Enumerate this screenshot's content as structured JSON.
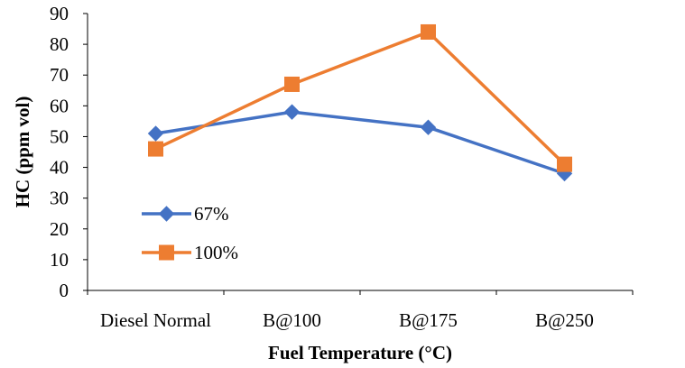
{
  "chart_data": {
    "type": "line",
    "categories": [
      "Diesel Normal",
      "B@100",
      "B@175",
      "B@250"
    ],
    "series": [
      {
        "name": "67%",
        "values": [
          51,
          58,
          53,
          38
        ],
        "color": "#4472C4",
        "marker": "diamond"
      },
      {
        "name": "100%",
        "values": [
          46,
          67,
          84,
          41
        ],
        "color": "#ED7D31",
        "marker": "square"
      }
    ],
    "title": "",
    "xlabel": "Fuel Temperature (°C)",
    "ylabel": "HC (ppm vol)",
    "ylim": [
      0,
      90
    ],
    "yticks": [
      "0",
      "10",
      "20",
      "30",
      "40",
      "50",
      "60",
      "70",
      "80",
      "90"
    ],
    "grid": false,
    "legend": "left-inside"
  }
}
